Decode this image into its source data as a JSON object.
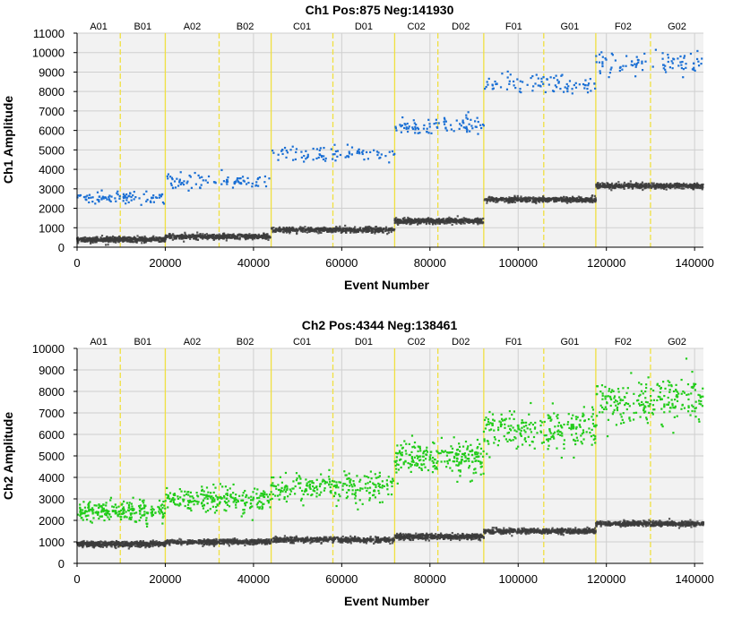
{
  "chart_data": [
    {
      "type": "scatter",
      "title": "Ch1 Pos:875 Neg:141930",
      "xlabel": "Event Number",
      "ylabel": "Ch1 Amplitude",
      "xlim": [
        0,
        142000
      ],
      "ylim": [
        0,
        11000
      ],
      "xticks": [
        0,
        20000,
        40000,
        60000,
        80000,
        100000,
        120000,
        140000
      ],
      "yticks": [
        0,
        1000,
        2000,
        3000,
        4000,
        5000,
        6000,
        7000,
        8000,
        9000,
        10000,
        11000
      ],
      "grid": true,
      "colors": {
        "positive": "#1a6fd4",
        "negative": "#3c3c3c",
        "background": "#f2f2f2"
      },
      "wells": [
        {
          "name": "A01",
          "start": 0,
          "end": 9800,
          "neg": 400,
          "pos": 2550
        },
        {
          "name": "B01",
          "start": 9800,
          "end": 20000,
          "neg": 400,
          "pos": 2550
        },
        {
          "name": "A02",
          "start": 20000,
          "end": 32200,
          "neg": 550,
          "pos": 3350
        },
        {
          "name": "B02",
          "start": 32200,
          "end": 44000,
          "neg": 550,
          "pos": 3350
        },
        {
          "name": "C01",
          "start": 44000,
          "end": 58000,
          "neg": 900,
          "pos": 4780
        },
        {
          "name": "D01",
          "start": 58000,
          "end": 72000,
          "neg": 900,
          "pos": 4780
        },
        {
          "name": "C02",
          "start": 72000,
          "end": 81800,
          "neg": 1350,
          "pos": 6200
        },
        {
          "name": "D02",
          "start": 81800,
          "end": 92200,
          "neg": 1350,
          "pos": 6250
        },
        {
          "name": "F01",
          "start": 92200,
          "end": 105800,
          "neg": 2450,
          "pos": 8400
        },
        {
          "name": "G01",
          "start": 105800,
          "end": 117600,
          "neg": 2450,
          "pos": 8400
        },
        {
          "name": "F02",
          "start": 117600,
          "end": 130000,
          "neg": 3150,
          "pos": 9450
        },
        {
          "name": "G02",
          "start": 130000,
          "end": 142000,
          "neg": 3150,
          "pos": 9450
        }
      ]
    },
    {
      "type": "scatter",
      "title": "Ch2 Pos:4344 Neg:138461",
      "xlabel": "Event Number",
      "ylabel": "Ch2 Amplitude",
      "xlim": [
        0,
        142000
      ],
      "ylim": [
        0,
        10000
      ],
      "xticks": [
        0,
        20000,
        40000,
        60000,
        80000,
        100000,
        120000,
        140000
      ],
      "yticks": [
        0,
        1000,
        2000,
        3000,
        4000,
        5000,
        6000,
        7000,
        8000,
        9000,
        10000
      ],
      "grid": true,
      "colors": {
        "positive": "#22cc1a",
        "negative": "#3c3c3c",
        "background": "#f2f2f2"
      },
      "wells": [
        {
          "name": "A01",
          "start": 0,
          "end": 9800,
          "neg": 900,
          "pos": 2400
        },
        {
          "name": "B01",
          "start": 9800,
          "end": 20000,
          "neg": 900,
          "pos": 2400
        },
        {
          "name": "A02",
          "start": 20000,
          "end": 32200,
          "neg": 1000,
          "pos": 2950
        },
        {
          "name": "B02",
          "start": 32200,
          "end": 44000,
          "neg": 1000,
          "pos": 2950
        },
        {
          "name": "C01",
          "start": 44000,
          "end": 58000,
          "neg": 1100,
          "pos": 3550
        },
        {
          "name": "D01",
          "start": 58000,
          "end": 72000,
          "neg": 1100,
          "pos": 3550
        },
        {
          "name": "C02",
          "start": 72000,
          "end": 81800,
          "neg": 1250,
          "pos": 4900
        },
        {
          "name": "D02",
          "start": 81800,
          "end": 92200,
          "neg": 1250,
          "pos": 4950
        },
        {
          "name": "F01",
          "start": 92200,
          "end": 105800,
          "neg": 1500,
          "pos": 6250
        },
        {
          "name": "G01",
          "start": 105800,
          "end": 117600,
          "neg": 1500,
          "pos": 6200
        },
        {
          "name": "F02",
          "start": 117600,
          "end": 130000,
          "neg": 1850,
          "pos": 7500
        },
        {
          "name": "G02",
          "start": 130000,
          "end": 142000,
          "neg": 1850,
          "pos": 7600
        }
      ]
    }
  ]
}
